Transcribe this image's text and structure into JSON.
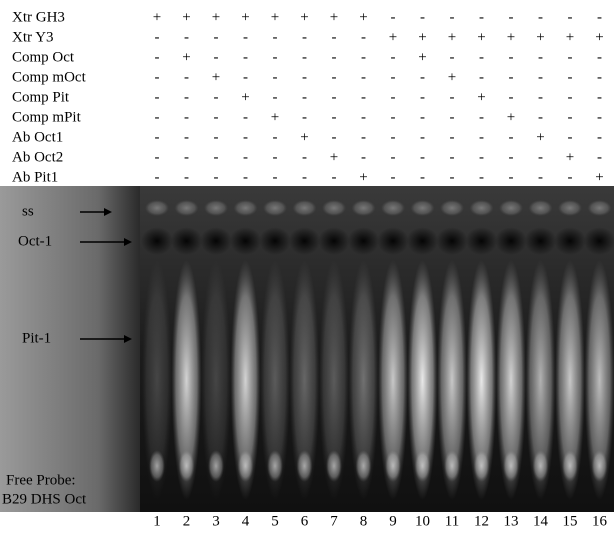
{
  "rows": [
    {
      "label": "Xtr GH3",
      "signs": [
        "+",
        "+",
        "+",
        "+",
        "+",
        "+",
        "+",
        "+",
        "-",
        "-",
        "-",
        "-",
        "-",
        "-",
        "-",
        "-"
      ]
    },
    {
      "label": "Xtr Y3",
      "signs": [
        "-",
        "-",
        "-",
        "-",
        "-",
        "-",
        "-",
        "-",
        "+",
        "+",
        "+",
        "+",
        "+",
        "+",
        "+",
        "+"
      ]
    },
    {
      "label": "Comp Oct",
      "signs": [
        "-",
        "+",
        "-",
        "-",
        "-",
        "-",
        "-",
        "-",
        "-",
        "+",
        "-",
        "-",
        "-",
        "-",
        "-",
        "-"
      ]
    },
    {
      "label": "Comp mOct",
      "signs": [
        "-",
        "-",
        "+",
        "-",
        "-",
        "-",
        "-",
        "-",
        "-",
        "-",
        "+",
        "-",
        "-",
        "-",
        "-",
        "-"
      ]
    },
    {
      "label": "Comp Pit",
      "signs": [
        "-",
        "-",
        "-",
        "+",
        "-",
        "-",
        "-",
        "-",
        "-",
        "-",
        "-",
        "+",
        "-",
        "-",
        "-",
        "-"
      ]
    },
    {
      "label": "Comp mPit",
      "signs": [
        "-",
        "-",
        "-",
        "-",
        "+",
        "-",
        "-",
        "-",
        "-",
        "-",
        "-",
        "-",
        "+",
        "-",
        "-",
        "-"
      ]
    },
    {
      "label": "Ab Oct1",
      "signs": [
        "-",
        "-",
        "-",
        "-",
        "-",
        "+",
        "-",
        "-",
        "-",
        "-",
        "-",
        "-",
        "-",
        "+",
        "-",
        "-"
      ]
    },
    {
      "label": "Ab Oct2",
      "signs": [
        "-",
        "-",
        "-",
        "-",
        "-",
        "-",
        "+",
        "-",
        "-",
        "-",
        "-",
        "-",
        "-",
        "-",
        "+",
        "-"
      ]
    },
    {
      "label": "Ab Pit1",
      "signs": [
        "-",
        "-",
        "-",
        "-",
        "-",
        "-",
        "-",
        "+",
        "-",
        "-",
        "-",
        "-",
        "-",
        "-",
        "-",
        "+"
      ]
    }
  ],
  "gel_labels": {
    "ss": "ss",
    "oct1": "Oct-1",
    "pit1": "Pit-1",
    "free_probe": [
      "Free Probe:",
      "B29 DHS Oct"
    ]
  },
  "lanes": [
    "1",
    "2",
    "3",
    "4",
    "5",
    "6",
    "7",
    "8",
    "9",
    "10",
    "11",
    "12",
    "13",
    "14",
    "15",
    "16"
  ]
}
